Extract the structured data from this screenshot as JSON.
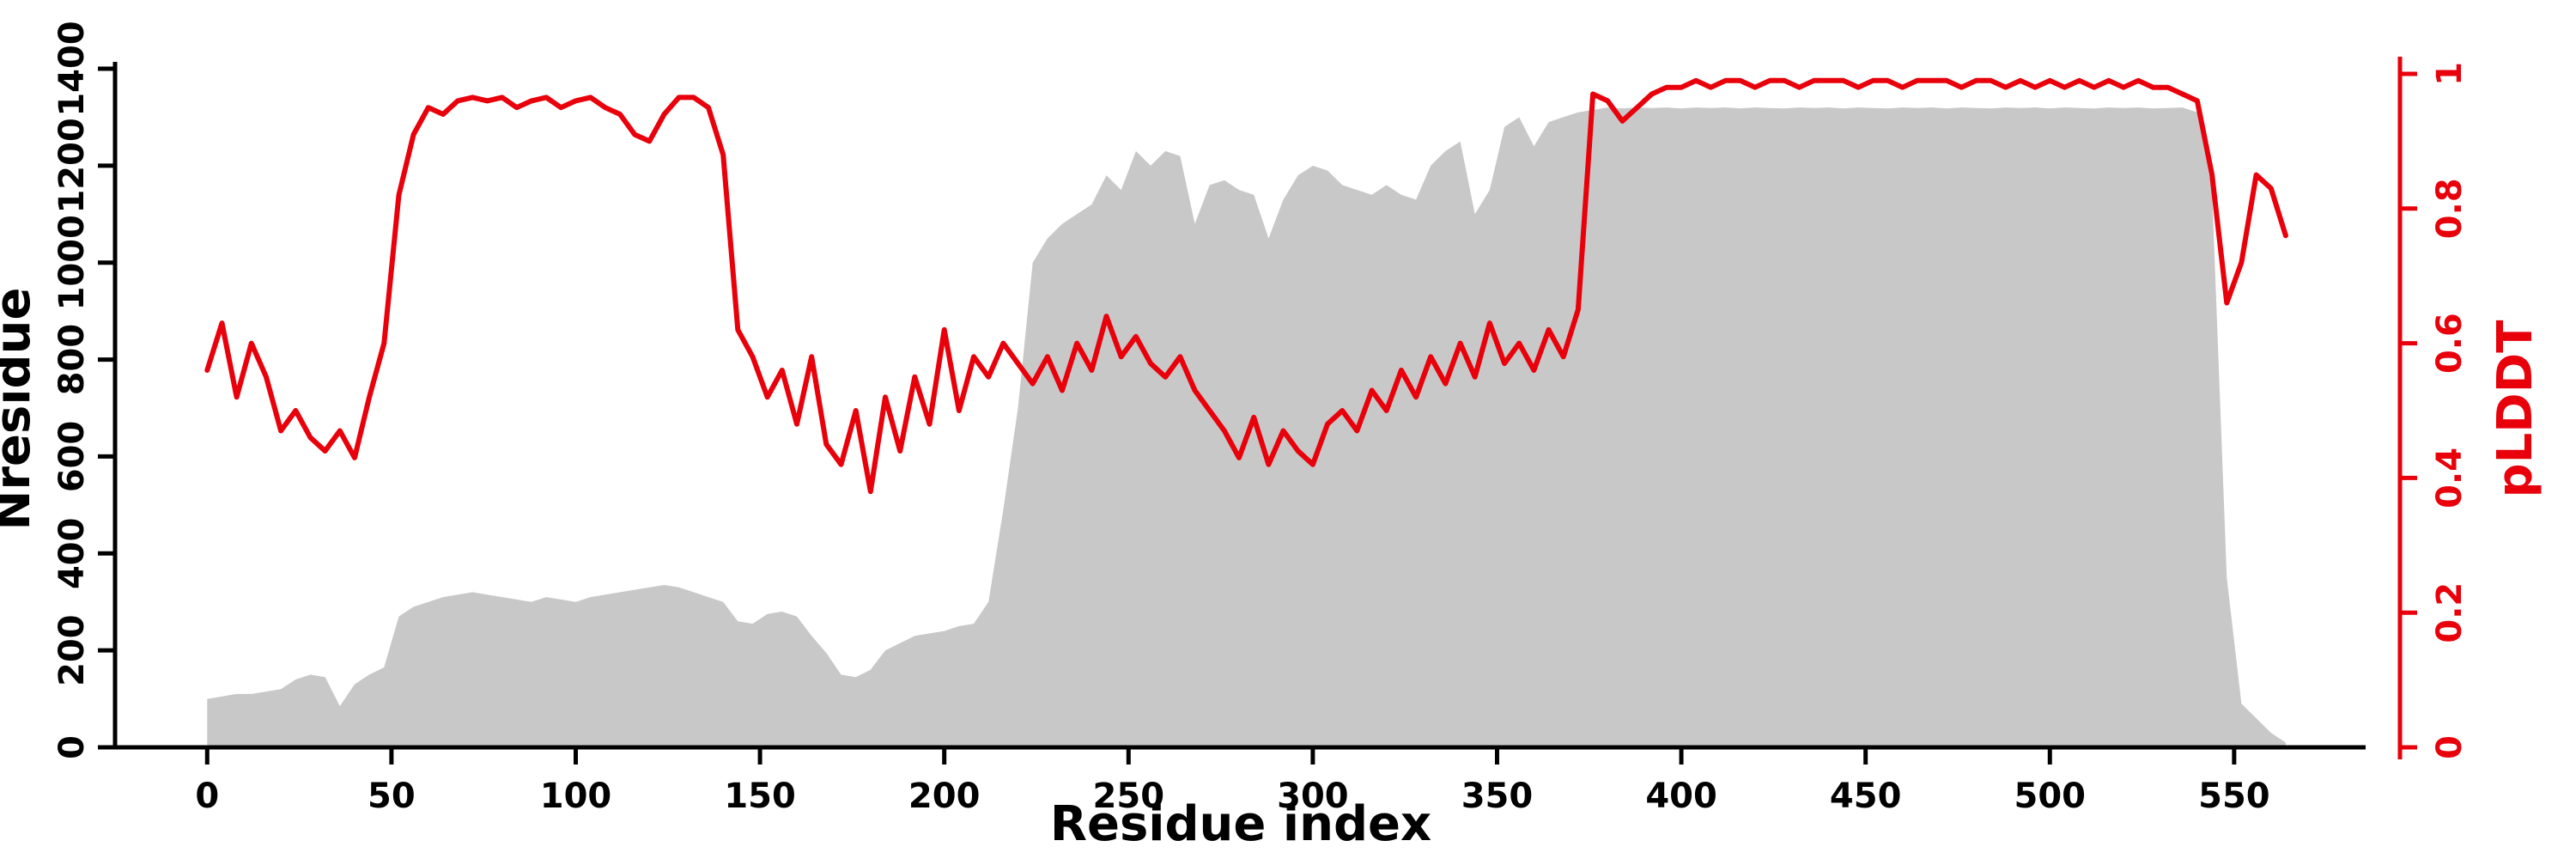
{
  "chart_data": {
    "type": "area+line",
    "title": "",
    "xlabel": "Residue index",
    "ylabel": "Nresidue",
    "y2label": "pLDDT",
    "legend": "none",
    "grid": "off",
    "x_range": [
      -25,
      595
    ],
    "y_left_range": [
      0,
      1400
    ],
    "y_right_range": [
      0,
      1
    ],
    "x_ticks": [
      0,
      50,
      100,
      150,
      200,
      250,
      300,
      350,
      400,
      450,
      500,
      550
    ],
    "y_left_ticks": [
      0,
      200,
      400,
      600,
      800,
      1000,
      1200,
      1400
    ],
    "y_right_ticks": [
      0,
      0.2,
      0.4,
      0.6,
      0.8,
      1
    ],
    "colors": {
      "area": "#c8c8c8",
      "line": "#e8000b",
      "axis": "#000000",
      "background": "#ffffff"
    },
    "x": [
      0,
      4,
      8,
      12,
      16,
      20,
      24,
      28,
      32,
      36,
      40,
      44,
      48,
      52,
      56,
      60,
      64,
      68,
      72,
      76,
      80,
      84,
      88,
      92,
      96,
      100,
      104,
      108,
      112,
      116,
      120,
      124,
      128,
      132,
      136,
      140,
      144,
      148,
      152,
      156,
      160,
      164,
      168,
      172,
      176,
      180,
      184,
      188,
      192,
      196,
      200,
      204,
      208,
      212,
      216,
      220,
      224,
      228,
      232,
      236,
      240,
      244,
      248,
      252,
      256,
      260,
      264,
      268,
      272,
      276,
      280,
      284,
      288,
      292,
      296,
      300,
      304,
      308,
      312,
      316,
      320,
      324,
      328,
      332,
      336,
      340,
      344,
      348,
      352,
      356,
      360,
      364,
      368,
      372,
      376,
      380,
      384,
      388,
      392,
      396,
      400,
      404,
      408,
      412,
      416,
      420,
      424,
      428,
      432,
      436,
      440,
      444,
      448,
      452,
      456,
      460,
      464,
      468,
      472,
      476,
      480,
      484,
      488,
      492,
      496,
      500,
      504,
      508,
      512,
      516,
      520,
      524,
      528,
      532,
      536,
      540,
      544,
      548,
      552,
      556,
      560,
      564
    ],
    "series": [
      {
        "name": "Nresidue",
        "style": "area",
        "axis": "left",
        "values": [
          100,
          105,
          110,
          110,
          115,
          120,
          140,
          150,
          145,
          85,
          130,
          150,
          165,
          270,
          290,
          300,
          310,
          315,
          320,
          315,
          310,
          305,
          300,
          310,
          305,
          300,
          310,
          315,
          320,
          325,
          330,
          335,
          330,
          320,
          310,
          300,
          260,
          255,
          275,
          280,
          270,
          230,
          195,
          150,
          145,
          160,
          200,
          215,
          230,
          235,
          240,
          250,
          255,
          300,
          490,
          700,
          1000,
          1050,
          1080,
          1100,
          1120,
          1180,
          1150,
          1230,
          1200,
          1230,
          1220,
          1080,
          1160,
          1170,
          1150,
          1140,
          1050,
          1130,
          1180,
          1200,
          1190,
          1160,
          1150,
          1140,
          1160,
          1140,
          1130,
          1200,
          1230,
          1250,
          1100,
          1150,
          1280,
          1300,
          1240,
          1290,
          1300,
          1310,
          1315,
          1320,
          1318,
          1320,
          1319,
          1320,
          1318,
          1320,
          1319,
          1320,
          1318,
          1320,
          1319,
          1318,
          1320,
          1319,
          1320,
          1318,
          1320,
          1319,
          1318,
          1320,
          1319,
          1320,
          1318,
          1320,
          1319,
          1318,
          1320,
          1319,
          1320,
          1318,
          1320,
          1319,
          1318,
          1320,
          1319,
          1320,
          1318,
          1319,
          1320,
          1310,
          1150,
          350,
          90,
          60,
          30,
          10
        ]
      },
      {
        "name": "pLDDT",
        "style": "line",
        "axis": "right",
        "values": [
          0.56,
          0.63,
          0.52,
          0.6,
          0.55,
          0.47,
          0.5,
          0.46,
          0.44,
          0.47,
          0.43,
          0.52,
          0.6,
          0.82,
          0.91,
          0.95,
          0.94,
          0.96,
          0.965,
          0.96,
          0.965,
          0.95,
          0.96,
          0.965,
          0.95,
          0.96,
          0.965,
          0.95,
          0.94,
          0.91,
          0.9,
          0.94,
          0.965,
          0.965,
          0.95,
          0.88,
          0.62,
          0.58,
          0.52,
          0.56,
          0.48,
          0.58,
          0.45,
          0.42,
          0.5,
          0.38,
          0.52,
          0.44,
          0.55,
          0.48,
          0.62,
          0.5,
          0.58,
          0.55,
          0.6,
          0.57,
          0.54,
          0.58,
          0.53,
          0.6,
          0.56,
          0.64,
          0.58,
          0.61,
          0.57,
          0.55,
          0.58,
          0.53,
          0.5,
          0.47,
          0.43,
          0.49,
          0.42,
          0.47,
          0.44,
          0.42,
          0.48,
          0.5,
          0.47,
          0.53,
          0.5,
          0.56,
          0.52,
          0.58,
          0.54,
          0.6,
          0.55,
          0.63,
          0.57,
          0.6,
          0.56,
          0.62,
          0.58,
          0.65,
          0.97,
          0.96,
          0.93,
          0.95,
          0.97,
          0.98,
          0.98,
          0.99,
          0.98,
          0.99,
          0.99,
          0.98,
          0.99,
          0.99,
          0.98,
          0.99,
          0.99,
          0.99,
          0.98,
          0.99,
          0.99,
          0.98,
          0.99,
          0.99,
          0.99,
          0.98,
          0.99,
          0.99,
          0.98,
          0.99,
          0.98,
          0.99,
          0.98,
          0.99,
          0.98,
          0.99,
          0.98,
          0.99,
          0.98,
          0.98,
          0.97,
          0.96,
          0.85,
          0.66,
          0.72,
          0.85,
          0.83,
          0.76
        ]
      }
    ]
  }
}
